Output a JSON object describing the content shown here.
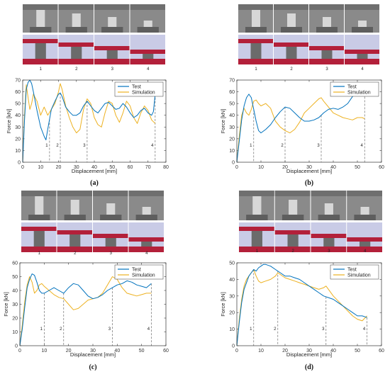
{
  "colors": {
    "test": "#0072BD",
    "simulation": "#EDB120",
    "marker": "#555555",
    "photo_bg": "#8a8a8a",
    "sim_plate": "#b3203a",
    "sim_bg": "#c9cbe6"
  },
  "chart_data": [
    {
      "type": "line",
      "caption": "(a)",
      "xlabel": "Displacement [mm]",
      "ylabel": "Force [kN]",
      "xlim": [
        0,
        80
      ],
      "ylim": [
        0,
        70
      ],
      "xticks": [
        0,
        10,
        20,
        30,
        40,
        50,
        60,
        70,
        80
      ],
      "yticks": [
        0,
        10,
        20,
        30,
        40,
        50,
        60,
        70
      ],
      "legend": "top-right",
      "series": [
        {
          "name": "Test",
          "x": [
            0,
            1,
            2,
            3,
            4,
            5,
            6,
            8,
            10,
            12,
            13,
            14,
            16,
            18,
            20,
            21,
            22,
            24,
            26,
            28,
            30,
            32,
            34,
            36,
            38,
            40,
            42,
            44,
            46,
            48,
            50,
            52,
            54,
            56,
            58,
            60,
            62,
            64,
            66,
            68,
            70,
            72,
            73,
            74
          ],
          "y": [
            0,
            35,
            62,
            68,
            70,
            67,
            60,
            44,
            30,
            22,
            19,
            28,
            45,
            52,
            58,
            59,
            56,
            47,
            43,
            40,
            40,
            42,
            48,
            52,
            48,
            44,
            42,
            46,
            50,
            51,
            48,
            45,
            46,
            50,
            47,
            42,
            38,
            40,
            44,
            46,
            42,
            40,
            43,
            58
          ]
        },
        {
          "name": "Simulation",
          "x": [
            0,
            1,
            2,
            3,
            4,
            5,
            6,
            8,
            10,
            12,
            14,
            16,
            18,
            20,
            21,
            22,
            24,
            26,
            28,
            30,
            32,
            34,
            36,
            38,
            40,
            42,
            44,
            46,
            48,
            50,
            52,
            54,
            56,
            58,
            60,
            62,
            64,
            66,
            68,
            70,
            72,
            74
          ],
          "y": [
            0,
            40,
            66,
            55,
            45,
            50,
            58,
            52,
            40,
            47,
            40,
            45,
            50,
            60,
            67,
            62,
            48,
            38,
            30,
            25,
            28,
            45,
            54,
            50,
            38,
            32,
            30,
            42,
            52,
            50,
            40,
            34,
            42,
            52,
            48,
            38,
            33,
            42,
            48,
            44,
            36,
            33
          ]
        }
      ],
      "markers": [
        {
          "label": "1",
          "x": 15
        },
        {
          "label": "2",
          "x": 21
        },
        {
          "label": "3",
          "x": 36
        },
        {
          "label": "4",
          "x": 74
        }
      ],
      "frames": [
        "1",
        "2",
        "3",
        "4"
      ]
    },
    {
      "type": "line",
      "caption": "(b)",
      "xlabel": "Displacement [mm]",
      "ylabel": "Force [kN]",
      "xlim": [
        0,
        60
      ],
      "ylim": [
        0,
        70
      ],
      "xticks": [
        0,
        10,
        20,
        30,
        40,
        50,
        60
      ],
      "yticks": [
        0,
        10,
        20,
        30,
        40,
        50,
        60,
        70
      ],
      "legend": "top-right",
      "series": [
        {
          "name": "Test",
          "x": [
            0,
            1,
            2,
            3,
            4,
            5,
            6,
            7,
            8,
            9,
            10,
            12,
            14,
            16,
            18,
            20,
            22,
            24,
            26,
            28,
            30,
            32,
            34,
            36,
            38,
            40,
            42,
            44,
            46,
            48,
            50,
            52,
            53
          ],
          "y": [
            0,
            18,
            36,
            48,
            55,
            58,
            55,
            45,
            35,
            27,
            25,
            28,
            32,
            38,
            43,
            47,
            46,
            42,
            38,
            35,
            35,
            36,
            38,
            42,
            45,
            46,
            45,
            47,
            50,
            56,
            60,
            62,
            68
          ]
        },
        {
          "name": "Simulation",
          "x": [
            0,
            1,
            2,
            3,
            4,
            5,
            6,
            7,
            8,
            9,
            10,
            12,
            14,
            16,
            18,
            20,
            22,
            24,
            26,
            28,
            30,
            32,
            34,
            35,
            36,
            38,
            40,
            42,
            44,
            46,
            48,
            50,
            52,
            53
          ],
          "y": [
            0,
            22,
            40,
            46,
            42,
            40,
            45,
            52,
            53,
            50,
            48,
            50,
            46,
            35,
            30,
            27,
            25,
            28,
            34,
            42,
            46,
            50,
            54,
            55,
            52,
            47,
            42,
            40,
            38,
            37,
            36,
            38,
            38,
            37
          ]
        }
      ],
      "markers": [
        {
          "label": "1",
          "x": 7
        },
        {
          "label": "2",
          "x": 20
        },
        {
          "label": "3",
          "x": 35
        },
        {
          "label": "4",
          "x": 53
        }
      ],
      "frames": [
        "1",
        "2",
        "3",
        "4"
      ]
    },
    {
      "type": "line",
      "caption": "(c)",
      "xlabel": "Displacement [mm]",
      "ylabel": "Force [kN]",
      "xlim": [
        0,
        60
      ],
      "ylim": [
        0,
        60
      ],
      "xticks": [
        0,
        10,
        20,
        30,
        40,
        50,
        60
      ],
      "yticks": [
        0,
        10,
        20,
        30,
        40,
        50,
        60
      ],
      "legend": "top-right",
      "series": [
        {
          "name": "Test",
          "x": [
            0,
            1,
            2,
            3,
            4,
            5,
            6,
            7,
            8,
            9,
            10,
            12,
            14,
            16,
            18,
            20,
            22,
            24,
            26,
            28,
            30,
            32,
            34,
            36,
            38,
            40,
            42,
            44,
            46,
            48,
            50,
            52,
            54
          ],
          "y": [
            0,
            12,
            28,
            42,
            48,
            52,
            51,
            46,
            40,
            38,
            38,
            40,
            42,
            40,
            38,
            42,
            45,
            44,
            40,
            36,
            34,
            35,
            37,
            40,
            42,
            44,
            45,
            47,
            46,
            44,
            43,
            42,
            45
          ]
        },
        {
          "name": "Simulation",
          "x": [
            0,
            1,
            2,
            3,
            4,
            5,
            6,
            7,
            8,
            9,
            10,
            12,
            14,
            16,
            18,
            20,
            22,
            24,
            26,
            28,
            30,
            32,
            34,
            36,
            38,
            40,
            42,
            44,
            46,
            48,
            50,
            52,
            54
          ],
          "y": [
            0,
            15,
            32,
            44,
            50,
            46,
            38,
            40,
            44,
            45,
            43,
            40,
            37,
            35,
            34,
            30,
            26,
            27,
            30,
            33,
            34,
            35,
            38,
            44,
            50,
            48,
            42,
            38,
            37,
            36,
            37,
            38,
            38
          ]
        }
      ],
      "markers": [
        {
          "label": "1",
          "x": 10
        },
        {
          "label": "2",
          "x": 18
        },
        {
          "label": "3",
          "x": 38
        },
        {
          "label": "4",
          "x": 54
        }
      ],
      "frames": [
        "1",
        "2",
        "3",
        "4"
      ]
    },
    {
      "type": "line",
      "caption": "(d)",
      "xlabel": "Displacement [mm]",
      "ylabel": "Force [kN]",
      "xlim": [
        0,
        60
      ],
      "ylim": [
        0,
        50
      ],
      "xticks": [
        0,
        10,
        20,
        30,
        40,
        50,
        60
      ],
      "yticks": [
        0,
        10,
        20,
        30,
        40,
        50
      ],
      "legend": "top-right",
      "series": [
        {
          "name": "Test",
          "x": [
            0,
            1,
            2,
            3,
            4,
            5,
            6,
            7,
            8,
            9,
            10,
            11,
            12,
            14,
            16,
            18,
            20,
            22,
            24,
            26,
            28,
            30,
            32,
            34,
            36,
            38,
            40,
            42,
            44,
            46,
            48,
            50,
            52,
            54
          ],
          "y": [
            0,
            14,
            26,
            34,
            38,
            42,
            44,
            46,
            45,
            47,
            48,
            49,
            49,
            48,
            46,
            44,
            42,
            42,
            41,
            40,
            38,
            36,
            34,
            32,
            30,
            29,
            28,
            26,
            24,
            22,
            20,
            18,
            18,
            17
          ]
        },
        {
          "name": "Simulation",
          "x": [
            0,
            1,
            2,
            3,
            4,
            5,
            6,
            7,
            8,
            9,
            10,
            12,
            14,
            16,
            17,
            18,
            20,
            22,
            24,
            26,
            28,
            30,
            32,
            34,
            36,
            37,
            38,
            40,
            42,
            44,
            46,
            48,
            50,
            52,
            54
          ],
          "y": [
            0,
            16,
            28,
            36,
            40,
            42,
            44,
            46,
            42,
            39,
            38,
            39,
            40,
            42,
            44,
            43,
            41,
            40,
            39,
            38,
            37,
            36,
            35,
            34,
            35,
            36,
            34,
            30,
            27,
            24,
            21,
            18,
            16,
            15,
            18
          ]
        }
      ],
      "markers": [
        {
          "label": "1",
          "x": 7
        },
        {
          "label": "2",
          "x": 17
        },
        {
          "label": "3",
          "x": 37
        },
        {
          "label": "4",
          "x": 54
        }
      ],
      "frames": [
        "1",
        "2",
        "3",
        "4"
      ]
    }
  ]
}
